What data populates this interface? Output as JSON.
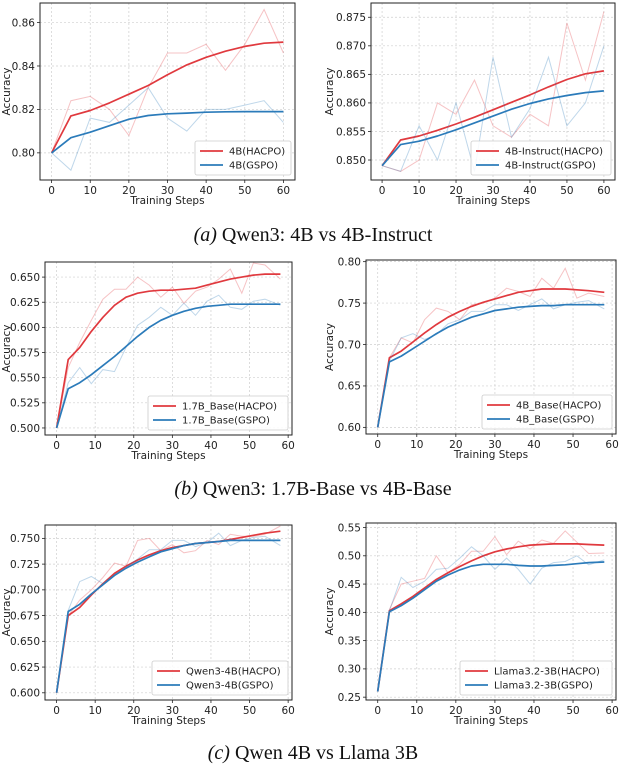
{
  "colors": {
    "hacpo": "#e0393e",
    "gspo": "#2b7bba",
    "grid": "#cfcfcf"
  },
  "captions": [
    {
      "label": "(a)",
      "text": "Qwen3: 4B vs 4B-Instruct"
    },
    {
      "label": "(b)",
      "text": "Qwen3: 1.7B-Base vs 4B-Base"
    },
    {
      "label": "(c)",
      "text": "Qwen 4B vs Llama 3B"
    }
  ],
  "chart_data": [
    {
      "type": "line",
      "xlabel": "Training Steps",
      "ylabel": "Accuracy",
      "grid": true,
      "legend": "bottom-right",
      "xlim": [
        -3,
        63
      ],
      "ylim": [
        0.7875,
        0.869
      ],
      "xticks": [
        "0",
        "10",
        "20",
        "30",
        "40",
        "50",
        "60"
      ],
      "yticks": [
        "0.80",
        "0.82",
        "0.84",
        "0.86"
      ],
      "x": [
        0,
        5,
        10,
        15,
        20,
        25,
        30,
        35,
        40,
        45,
        50,
        55,
        60
      ],
      "series": [
        {
          "name": "4B(HACPO)",
          "color": "hacpo",
          "raw": [
            0.8,
            0.824,
            0.826,
            0.82,
            0.808,
            0.83,
            0.846,
            0.846,
            0.85,
            0.838,
            0.85,
            0.866,
            0.846
          ],
          "smoothed": [
            0.8,
            0.817,
            0.8195,
            0.823,
            0.827,
            0.831,
            0.836,
            0.8405,
            0.844,
            0.8468,
            0.849,
            0.8505,
            0.851
          ]
        },
        {
          "name": "4B(GSPO)",
          "color": "gspo",
          "raw": [
            0.8,
            0.792,
            0.816,
            0.814,
            0.822,
            0.83,
            0.816,
            0.81,
            0.82,
            0.82,
            0.822,
            0.824,
            0.814
          ],
          "smoothed": [
            0.8,
            0.807,
            0.8095,
            0.8125,
            0.8155,
            0.8172,
            0.818,
            0.8183,
            0.8187,
            0.8189,
            0.819,
            0.819,
            0.819
          ]
        }
      ]
    },
    {
      "type": "line",
      "xlabel": "Training Steps",
      "ylabel": "Accuracy",
      "grid": true,
      "legend": "bottom-right",
      "xlim": [
        -3,
        63
      ],
      "ylim": [
        0.8465,
        0.8775
      ],
      "xticks": [
        "0",
        "10",
        "20",
        "30",
        "40",
        "50",
        "60"
      ],
      "yticks": [
        "0.850",
        "0.855",
        "0.860",
        "0.865",
        "0.870",
        "0.875"
      ],
      "x": [
        0,
        5,
        10,
        15,
        20,
        25,
        30,
        35,
        40,
        45,
        50,
        55,
        60
      ],
      "series": [
        {
          "name": "4B-Instruct(HACPO)",
          "color": "hacpo",
          "raw": [
            0.849,
            0.848,
            0.85,
            0.86,
            0.858,
            0.864,
            0.856,
            0.854,
            0.858,
            0.856,
            0.874,
            0.864,
            0.876
          ],
          "smoothed": [
            0.849,
            0.8535,
            0.8542,
            0.8552,
            0.8563,
            0.8575,
            0.8588,
            0.8601,
            0.8614,
            0.8628,
            0.8641,
            0.8651,
            0.8656
          ]
        },
        {
          "name": "4B-Instruct(GSPO)",
          "color": "gspo",
          "raw": [
            0.849,
            0.848,
            0.856,
            0.85,
            0.86,
            0.848,
            0.868,
            0.854,
            0.859,
            0.868,
            0.856,
            0.86,
            0.87
          ],
          "smoothed": [
            0.849,
            0.8527,
            0.8533,
            0.8542,
            0.8553,
            0.8565,
            0.8577,
            0.8589,
            0.8599,
            0.8607,
            0.8613,
            0.8618,
            0.8621
          ]
        }
      ]
    },
    {
      "type": "line",
      "xlabel": "Training Steps",
      "ylabel": "Accuracy",
      "grid": true,
      "legend": "bottom-right",
      "xlim": [
        -3,
        61
      ],
      "ylim": [
        0.493,
        0.665
      ],
      "xticks": [
        "0",
        "10",
        "20",
        "30",
        "40",
        "50",
        "60"
      ],
      "yticks": [
        "0.500",
        "0.525",
        "0.550",
        "0.575",
        "0.600",
        "0.625",
        "0.650"
      ],
      "x": [
        0,
        3,
        6,
        9,
        12,
        15,
        18,
        21,
        24,
        27,
        30,
        33,
        36,
        39,
        42,
        45,
        48,
        51,
        54,
        58
      ],
      "series": [
        {
          "name": "1.7B_Base(HACPO)",
          "color": "hacpo",
          "raw": [
            0.5,
            0.56,
            0.585,
            0.607,
            0.628,
            0.638,
            0.638,
            0.65,
            0.642,
            0.63,
            0.64,
            0.624,
            0.636,
            0.64,
            0.648,
            0.658,
            0.634,
            0.664,
            0.662,
            0.648
          ],
          "smoothed": [
            0.5,
            0.568,
            0.58,
            0.596,
            0.61,
            0.622,
            0.63,
            0.634,
            0.636,
            0.637,
            0.637,
            0.638,
            0.639,
            0.642,
            0.645,
            0.648,
            0.65,
            0.652,
            0.653,
            0.653
          ]
        },
        {
          "name": "1.7B_Base(GSPO)",
          "color": "gspo",
          "raw": [
            0.5,
            0.545,
            0.56,
            0.544,
            0.558,
            0.556,
            0.58,
            0.602,
            0.61,
            0.62,
            0.612,
            0.624,
            0.612,
            0.626,
            0.632,
            0.62,
            0.618,
            0.626,
            0.628,
            0.622
          ],
          "smoothed": [
            0.5,
            0.539,
            0.545,
            0.553,
            0.562,
            0.571,
            0.581,
            0.591,
            0.6,
            0.607,
            0.612,
            0.616,
            0.619,
            0.621,
            0.622,
            0.623,
            0.623,
            0.623,
            0.623,
            0.623
          ]
        }
      ]
    },
    {
      "type": "line",
      "xlabel": "Training Steps",
      "ylabel": "Accuracy",
      "grid": true,
      "legend": "bottom-right",
      "xlim": [
        -3,
        61
      ],
      "ylim": [
        0.592,
        0.802
      ],
      "xticks": [
        "0",
        "10",
        "20",
        "30",
        "40",
        "50",
        "60"
      ],
      "yticks": [
        "0.60",
        "0.65",
        "0.70",
        "0.75",
        "0.80"
      ],
      "x": [
        0,
        3,
        6,
        9,
        12,
        15,
        18,
        21,
        24,
        27,
        30,
        33,
        36,
        39,
        42,
        45,
        48,
        51,
        54,
        58
      ],
      "series": [
        {
          "name": "4B_Base(HACPO)",
          "color": "hacpo",
          "raw": [
            0.6,
            0.684,
            0.708,
            0.702,
            0.73,
            0.744,
            0.74,
            0.73,
            0.748,
            0.75,
            0.756,
            0.768,
            0.764,
            0.758,
            0.78,
            0.768,
            0.792,
            0.756,
            0.762,
            0.758
          ],
          "smoothed": [
            0.6,
            0.684,
            0.692,
            0.703,
            0.714,
            0.724,
            0.733,
            0.74,
            0.746,
            0.751,
            0.755,
            0.759,
            0.763,
            0.765,
            0.767,
            0.767,
            0.767,
            0.766,
            0.765,
            0.763
          ]
        },
        {
          "name": "4B_Base(GSPO)",
          "color": "gspo",
          "raw": [
            0.6,
            0.68,
            0.708,
            0.713,
            0.706,
            0.712,
            0.725,
            0.73,
            0.74,
            0.74,
            0.748,
            0.748,
            0.741,
            0.748,
            0.755,
            0.743,
            0.748,
            0.751,
            0.753,
            0.743
          ],
          "smoothed": [
            0.6,
            0.679,
            0.686,
            0.695,
            0.704,
            0.713,
            0.721,
            0.727,
            0.733,
            0.737,
            0.741,
            0.743,
            0.745,
            0.746,
            0.747,
            0.747,
            0.748,
            0.748,
            0.748,
            0.748
          ]
        }
      ]
    },
    {
      "type": "line",
      "xlabel": "Training Steps",
      "ylabel": "Accuracy",
      "grid": true,
      "legend": "bottom-right",
      "xlim": [
        -3,
        61
      ],
      "ylim": [
        0.593,
        0.763
      ],
      "xticks": [
        "0",
        "10",
        "20",
        "30",
        "40",
        "50",
        "60"
      ],
      "yticks": [
        "0.600",
        "0.625",
        "0.650",
        "0.675",
        "0.700",
        "0.725",
        "0.750"
      ],
      "x": [
        0,
        3,
        6,
        9,
        12,
        15,
        18,
        21,
        24,
        27,
        30,
        33,
        36,
        39,
        42,
        45,
        48,
        51,
        54,
        58
      ],
      "series": [
        {
          "name": "Qwen3-4B(HACPO)",
          "color": "hacpo",
          "raw": [
            0.6,
            0.675,
            0.69,
            0.7,
            0.712,
            0.726,
            0.723,
            0.748,
            0.75,
            0.738,
            0.744,
            0.736,
            0.738,
            0.748,
            0.744,
            0.754,
            0.752,
            0.752,
            0.754,
            0.762
          ],
          "smoothed": [
            0.6,
            0.675,
            0.683,
            0.695,
            0.706,
            0.716,
            0.723,
            0.729,
            0.734,
            0.738,
            0.741,
            0.743,
            0.745,
            0.746,
            0.747,
            0.749,
            0.751,
            0.753,
            0.755,
            0.757
          ]
        },
        {
          "name": "Qwen3-4B(GSPO)",
          "color": "gspo",
          "raw": [
            0.6,
            0.68,
            0.708,
            0.713,
            0.706,
            0.714,
            0.722,
            0.73,
            0.739,
            0.739,
            0.748,
            0.748,
            0.742,
            0.746,
            0.755,
            0.743,
            0.748,
            0.751,
            0.752,
            0.743
          ],
          "smoothed": [
            0.6,
            0.679,
            0.686,
            0.696,
            0.705,
            0.714,
            0.721,
            0.727,
            0.732,
            0.737,
            0.74,
            0.743,
            0.745,
            0.746,
            0.747,
            0.748,
            0.748,
            0.748,
            0.748,
            0.748
          ]
        }
      ]
    },
    {
      "type": "line",
      "xlabel": "Training Steps",
      "ylabel": "Accuracy",
      "grid": true,
      "legend": "bottom-right",
      "xlim": [
        -3,
        61
      ],
      "ylim": [
        0.245,
        0.558
      ],
      "xticks": [
        "0",
        "10",
        "20",
        "30",
        "40",
        "50",
        "60"
      ],
      "yticks": [
        "0.25",
        "0.30",
        "0.35",
        "0.40",
        "0.45",
        "0.50",
        "0.55"
      ],
      "x": [
        0,
        3,
        6,
        9,
        12,
        15,
        18,
        21,
        24,
        27,
        30,
        33,
        36,
        39,
        42,
        45,
        48,
        51,
        54,
        58
      ],
      "series": [
        {
          "name": "Llama3.2-3B(HACPO)",
          "color": "hacpo",
          "raw": [
            0.26,
            0.405,
            0.45,
            0.455,
            0.46,
            0.5,
            0.47,
            0.485,
            0.508,
            0.508,
            0.534,
            0.502,
            0.526,
            0.512,
            0.528,
            0.522,
            0.544,
            0.524,
            0.504,
            0.505
          ],
          "smoothed": [
            0.26,
            0.403,
            0.415,
            0.428,
            0.443,
            0.458,
            0.47,
            0.481,
            0.491,
            0.5,
            0.507,
            0.512,
            0.516,
            0.519,
            0.52,
            0.521,
            0.521,
            0.521,
            0.52,
            0.519
          ]
        },
        {
          "name": "Llama3.2-3B(GSPO)",
          "color": "gspo",
          "raw": [
            0.26,
            0.403,
            0.462,
            0.444,
            0.455,
            0.476,
            0.478,
            0.496,
            0.516,
            0.5,
            0.476,
            0.496,
            0.476,
            0.45,
            0.478,
            0.488,
            0.49,
            0.5,
            0.484,
            0.493
          ],
          "smoothed": [
            0.26,
            0.401,
            0.412,
            0.425,
            0.44,
            0.455,
            0.466,
            0.475,
            0.482,
            0.485,
            0.485,
            0.485,
            0.483,
            0.482,
            0.482,
            0.483,
            0.484,
            0.486,
            0.488,
            0.489
          ]
        }
      ]
    }
  ]
}
